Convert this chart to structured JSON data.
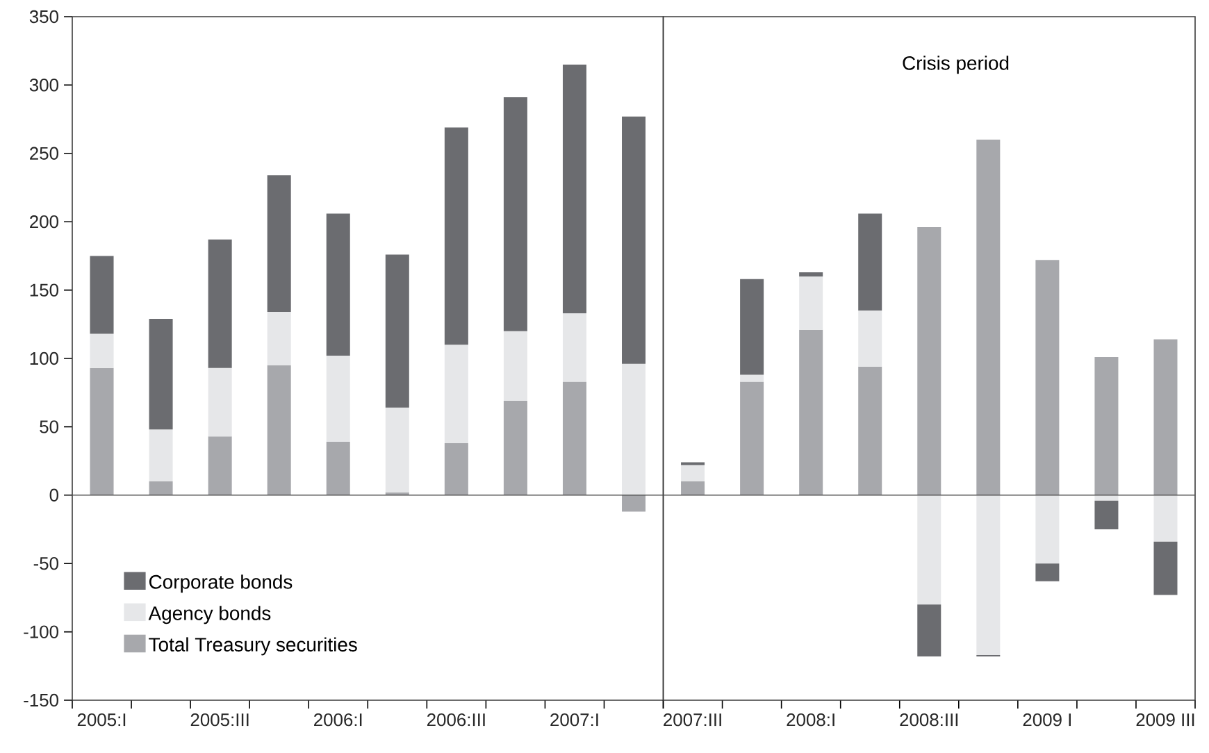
{
  "chart_data": [
    {
      "type": "bar",
      "stacked": true,
      "categories": [
        "2005:I",
        null,
        "2005:III",
        null,
        "2006:I",
        null,
        "2006:III",
        null,
        "2007:I",
        null
      ],
      "series": [
        {
          "name": "Total Treasury securities",
          "color": "#a7a8ac",
          "values": [
            93,
            10,
            43,
            95,
            39,
            2,
            38,
            69,
            83,
            -12
          ]
        },
        {
          "name": "Agency bonds",
          "color": "#e6e7e9",
          "values": [
            25,
            38,
            50,
            39,
            63,
            62,
            72,
            51,
            50,
            96
          ]
        },
        {
          "name": "Corporate bonds",
          "color": "#6b6c70",
          "values": [
            57,
            81,
            94,
            100,
            104,
            112,
            159,
            171,
            182,
            181
          ]
        }
      ],
      "ylim": [
        -150,
        350
      ],
      "yticks": [
        -150,
        -100,
        -50,
        0,
        50,
        100,
        150,
        200,
        250,
        300,
        350
      ],
      "ref_lines": [
        {
          "axis": "y",
          "value": 0,
          "color": "#555555"
        }
      ],
      "legend": "bottom left"
    },
    {
      "type": "bar",
      "stacked": true,
      "categories": [
        "2007:III",
        null,
        "2008:I",
        null,
        "2008:III",
        null,
        "2009 I",
        null,
        "2009 III"
      ],
      "series": [
        {
          "color": "#a7a8ac",
          "values": [
            10,
            83,
            121,
            94,
            196,
            260,
            172,
            101,
            114
          ]
        },
        {
          "color": "#e6e7e9",
          "values": [
            12,
            5,
            39,
            41,
            -80,
            -117,
            -50,
            -4,
            -34
          ]
        },
        {
          "color": "#6b6c70",
          "values": [
            2,
            70,
            3,
            71,
            -38,
            -1,
            -13,
            -21,
            -39
          ]
        }
      ],
      "ylim": [
        -150,
        350
      ],
      "yticks": [
        -150,
        -100,
        -50,
        0,
        50,
        100,
        150,
        200,
        250,
        300,
        350
      ],
      "tick_labels": "x",
      "ref_lines": [
        {
          "axis": "y",
          "value": 0,
          "color": "#555555"
        }
      ],
      "annotations": [
        "Crisis period"
      ]
    }
  ]
}
